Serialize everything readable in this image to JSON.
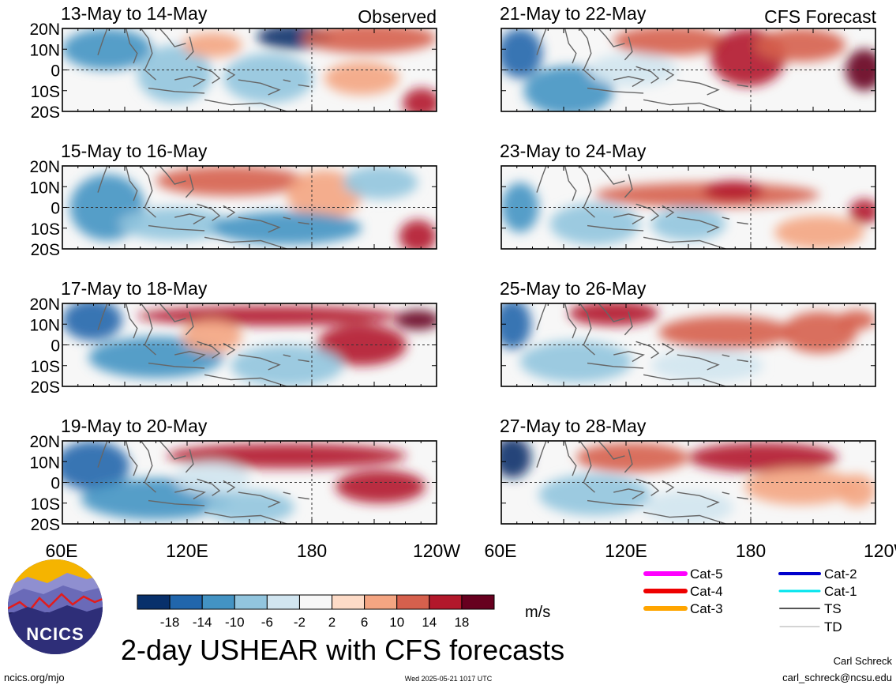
{
  "header": {
    "left_label": "Observed",
    "right_label": "CFS Forecast"
  },
  "panels": [
    {
      "title": "13-May to 14-May",
      "column": 0,
      "row": 0
    },
    {
      "title": "15-May to 16-May",
      "column": 0,
      "row": 1
    },
    {
      "title": "17-May to 18-May",
      "column": 0,
      "row": 2
    },
    {
      "title": "19-May to 20-May",
      "column": 0,
      "row": 3
    },
    {
      "title": "21-May to 22-May",
      "column": 1,
      "row": 0
    },
    {
      "title": "23-May to 24-May",
      "column": 1,
      "row": 1
    },
    {
      "title": "25-May to 26-May",
      "column": 1,
      "row": 2
    },
    {
      "title": "27-May to 28-May",
      "column": 1,
      "row": 3
    }
  ],
  "axes": {
    "lat_labels": [
      "20N",
      "10N",
      "0",
      "10S",
      "20S"
    ],
    "lon_labels": [
      "60E",
      "120E",
      "180",
      "120W"
    ]
  },
  "colorbar": {
    "colors": [
      "#08306b",
      "#2166ac",
      "#4393c3",
      "#92c5de",
      "#d1e5f0",
      "#f7f7f7",
      "#fddbc7",
      "#f4a582",
      "#d6604d",
      "#b2182b",
      "#67001f"
    ],
    "ticks": [
      "-18",
      "-14",
      "-10",
      "-6",
      "-2",
      "2",
      "6",
      "10",
      "14",
      "18"
    ],
    "units": "m/s"
  },
  "legend": {
    "items": [
      {
        "label": "Cat-5",
        "color": "#ff00ff",
        "width": 6
      },
      {
        "label": "Cat-4",
        "color": "#ee0000",
        "width": 6
      },
      {
        "label": "Cat-3",
        "color": "#ffa500",
        "width": 6
      },
      {
        "label": "Cat-2",
        "color": "#0000cc",
        "width": 4
      },
      {
        "label": "Cat-1",
        "color": "#00e5ee",
        "width": 3
      },
      {
        "label": "TS",
        "color": "#555555",
        "width": 2
      },
      {
        "label": "TD",
        "color": "#aaaaaa",
        "width": 1
      }
    ]
  },
  "logo": {
    "text": "NCICS"
  },
  "footer": {
    "title": "2-day USHEAR with CFS forecasts",
    "url": "ncics.org/mjo",
    "timestamp": "Wed 2025-05-21 1017 UTC",
    "author": "Carl Schreck",
    "email": "carl_schreck@ncsu.edu"
  }
}
